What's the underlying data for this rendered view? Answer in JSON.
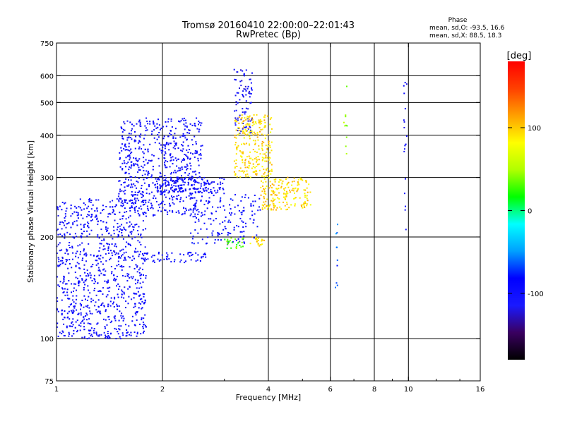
{
  "chart_data": {
    "type": "scatter",
    "title": "Tromsø 20160410 22:00:00–22:01:43",
    "subtitle": "RwPretec (Bp)",
    "xlabel": "Frequency [MHz]",
    "ylabel": "Stationary phase Virtual Height [km]",
    "x_scale": "log",
    "y_scale": "log",
    "xlim": [
      1,
      16
    ],
    "ylim": [
      75,
      750
    ],
    "xticks": [
      "1",
      "2",
      "4",
      "6",
      "8",
      "10",
      "16"
    ],
    "yticks": [
      "75",
      "100",
      "200",
      "300",
      "400",
      "500",
      "600",
      "750"
    ],
    "xgrid": [
      2,
      4,
      6,
      8,
      10
    ],
    "ygrid": [
      100,
      200,
      300,
      400,
      500,
      600
    ],
    "grid": true,
    "phase_stats": {
      "title": "Phase",
      "line_o": "mean, sd,O: -93.5, 16.6",
      "line_x": "mean, sd,X:  88.5, 18.3"
    },
    "colorbar": {
      "label": "[deg]",
      "range": [
        -180,
        180
      ],
      "ticks": [
        "100",
        "0",
        "-100"
      ],
      "tick_values": [
        100,
        0,
        -100
      ],
      "colors": [
        "#000000",
        "#3a0060",
        "#1a1aff",
        "#0000ff",
        "#00a0ff",
        "#00ffff",
        "#00ff00",
        "#b0ff00",
        "#ffff00",
        "#ffa000",
        "#ff4000",
        "#ff0000"
      ]
    },
    "point_clusters": [
      {
        "name": "low F-region blue cloud",
        "phase": -100,
        "x_range": [
          1.0,
          1.8
        ],
        "y_range": [
          100,
          260
        ],
        "count": 900
      },
      {
        "name": "F-region blue spread",
        "phase": -100,
        "x_range": [
          1.5,
          2.6
        ],
        "y_range": [
          230,
          450
        ],
        "count": 650
      },
      {
        "name": "trace 280km",
        "phase": -105,
        "x_range": [
          1.9,
          3.0
        ],
        "y_range": [
          270,
          300
        ],
        "count": 150
      },
      {
        "name": "oblique traces",
        "phase": -95,
        "x_range": [
          2.4,
          3.8
        ],
        "y_range": [
          190,
          270
        ],
        "count": 160
      },
      {
        "name": "high blue column",
        "phase": -110,
        "x_range": [
          3.2,
          3.6
        ],
        "y_range": [
          400,
          640
        ],
        "count": 90
      },
      {
        "name": "yellow X-mode cluster",
        "phase": 95,
        "x_range": [
          3.2,
          4.1
        ],
        "y_range": [
          300,
          460
        ],
        "count": 260
      },
      {
        "name": "yellow X-mode low",
        "phase": 95,
        "x_range": [
          3.8,
          5.3
        ],
        "y_range": [
          240,
          300
        ],
        "count": 180
      },
      {
        "name": "green patch",
        "phase": 30,
        "x_range": [
          3.0,
          3.4
        ],
        "y_range": [
          185,
          200
        ],
        "count": 25
      },
      {
        "name": "yellow patch 190km",
        "phase": 95,
        "x_range": [
          3.5,
          3.9
        ],
        "y_range": [
          188,
          200
        ],
        "count": 20
      },
      {
        "name": "sporadic 175km",
        "phase": -95,
        "x_range": [
          1.7,
          2.7
        ],
        "y_range": [
          168,
          180
        ],
        "count": 60
      },
      {
        "name": "line 6.2MHz",
        "phase": -60,
        "x_range": [
          6.2,
          6.3
        ],
        "y_range": [
          140,
          220
        ],
        "count": 10
      },
      {
        "name": "line 6.6MHz",
        "phase": 40,
        "x_range": [
          6.5,
          6.7
        ],
        "y_range": [
          350,
          560
        ],
        "count": 10
      },
      {
        "name": "line 9.8MHz",
        "phase": -100,
        "x_range": [
          9.7,
          9.9
        ],
        "y_range": [
          210,
          620
        ],
        "count": 18
      }
    ]
  }
}
